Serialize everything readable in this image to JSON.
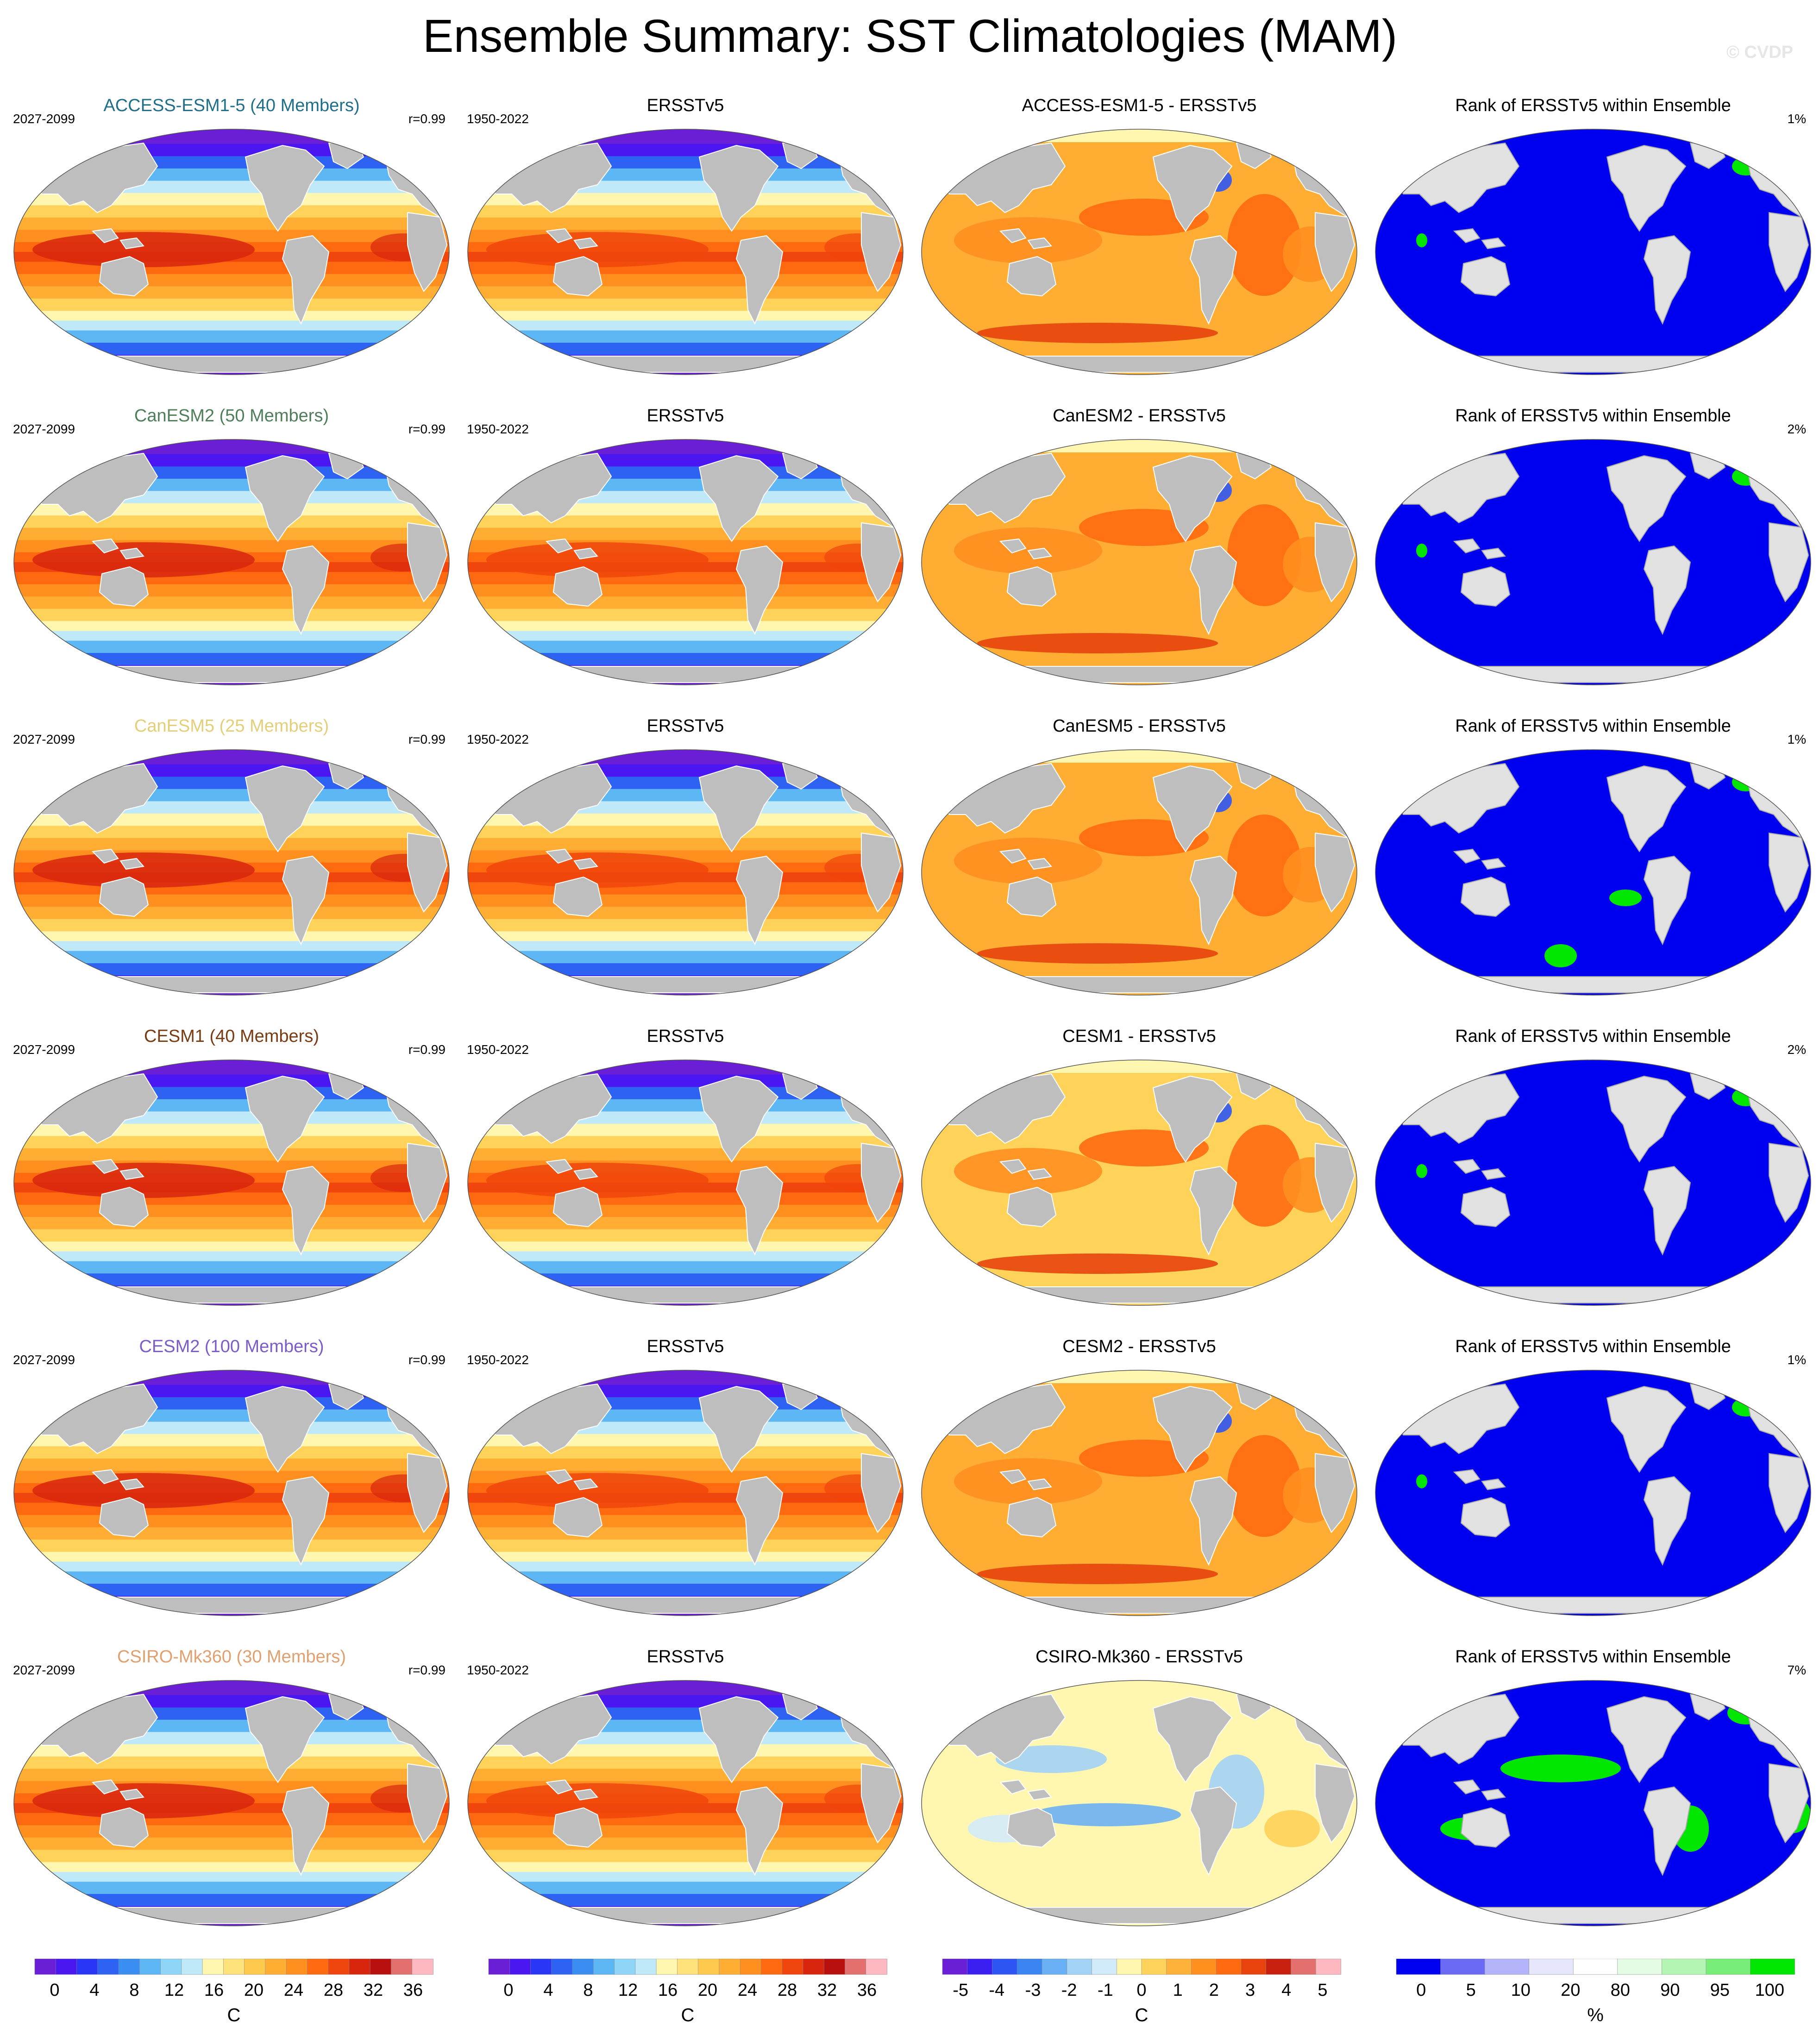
{
  "title": "Ensemble Summary: SST Climatologies (MAM)",
  "credit": "© CVDP",
  "rows": [
    {
      "model_title": "ACCESS-ESM1-5 (40 Members)",
      "model_color": "#1f6f8b",
      "model_period": "2027-2099",
      "correlation": "r=0.99",
      "obs_title": "ERSSTv5",
      "obs_period": "1950-2022",
      "diff_title": "ACCESS-ESM1-5 - ERSSTv5",
      "rank_title": "Rank of ERSSTv5 within Ensemble",
      "rank_pct": "1%"
    },
    {
      "model_title": "CanESM2 (50 Members)",
      "model_color": "#4f7f5a",
      "model_period": "2027-2099",
      "correlation": "r=0.99",
      "obs_title": "ERSSTv5",
      "obs_period": "1950-2022",
      "diff_title": "CanESM2 - ERSSTv5",
      "rank_title": "Rank of ERSSTv5 within Ensemble",
      "rank_pct": "2%"
    },
    {
      "model_title": "CanESM5 (25 Members)",
      "model_color": "#e3cf7a",
      "model_period": "2027-2099",
      "correlation": "r=0.99",
      "obs_title": "ERSSTv5",
      "obs_period": "1950-2022",
      "diff_title": "CanESM5 - ERSSTv5",
      "rank_title": "Rank of ERSSTv5 within Ensemble",
      "rank_pct": "1%"
    },
    {
      "model_title": "CESM1 (40 Members)",
      "model_color": "#7a3a12",
      "model_period": "2027-2099",
      "correlation": "r=0.99",
      "obs_title": "ERSSTv5",
      "obs_period": "1950-2022",
      "diff_title": "CESM1 - ERSSTv5",
      "rank_title": "Rank of ERSSTv5 within Ensemble",
      "rank_pct": "2%"
    },
    {
      "model_title": "CESM2 (100 Members)",
      "model_color": "#7b5cc9",
      "model_period": "2027-2099",
      "correlation": "r=0.99",
      "obs_title": "ERSSTv5",
      "obs_period": "1950-2022",
      "diff_title": "CESM2 - ERSSTv5",
      "rank_title": "Rank of ERSSTv5 within Ensemble",
      "rank_pct": "1%"
    },
    {
      "model_title": "CSIRO-Mk360 (30 Members)",
      "model_color": "#e0a070",
      "model_period": "2027-2099",
      "correlation": "r=0.99",
      "obs_title": "ERSSTv5",
      "obs_period": "1950-2022",
      "diff_title": "CSIRO-Mk360 - ERSSTv5",
      "rank_title": "Rank of ERSSTv5 within Ensemble",
      "rank_pct": "7%"
    }
  ],
  "colorbars": {
    "sst": {
      "unit": "C",
      "labels": [
        "0",
        "4",
        "8",
        "12",
        "16",
        "20",
        "24",
        "28",
        "32",
        "36"
      ],
      "colors": [
        "#6a1fd6",
        "#4a16f2",
        "#2a36f5",
        "#2d62f3",
        "#3a8ef2",
        "#5db7f4",
        "#8fd5f7",
        "#bfe8f8",
        "#fff6b0",
        "#ffe27a",
        "#ffc94e",
        "#ffad33",
        "#ff8f1f",
        "#ff6a10",
        "#f0450c",
        "#d8260e",
        "#b8100e",
        "#e46f6f",
        "#ffb8c0"
      ]
    },
    "diff": {
      "unit": "C",
      "labels": [
        "-5",
        "-4",
        "-3",
        "-2",
        "-1",
        "0",
        "1",
        "2",
        "3",
        "4",
        "5"
      ],
      "colors": [
        "#6a1fd6",
        "#3b1ff2",
        "#2d55f4",
        "#3b85f3",
        "#6ab0f4",
        "#a3d2f7",
        "#d2ebfa",
        "#fff6b0",
        "#ffd25a",
        "#ffb23a",
        "#ff8f1f",
        "#ff6a10",
        "#e8430c",
        "#c8200e",
        "#e46f6f",
        "#ffb8c0"
      ]
    },
    "rank": {
      "unit": "%",
      "labels": [
        "0",
        "5",
        "10",
        "20",
        "80",
        "90",
        "95",
        "100"
      ],
      "colors": [
        "#0000f0",
        "#6a6af5",
        "#b4b4fa",
        "#e6e6fc",
        "#ffffff",
        "#e4fce4",
        "#b4f5b4",
        "#78ee78",
        "#00e600"
      ]
    }
  },
  "map_colors": {
    "land": "#bebebe",
    "rank_land": "#e1e1e1",
    "rank_ocean": "#0000f0",
    "rank_high": "#00e600"
  }
}
